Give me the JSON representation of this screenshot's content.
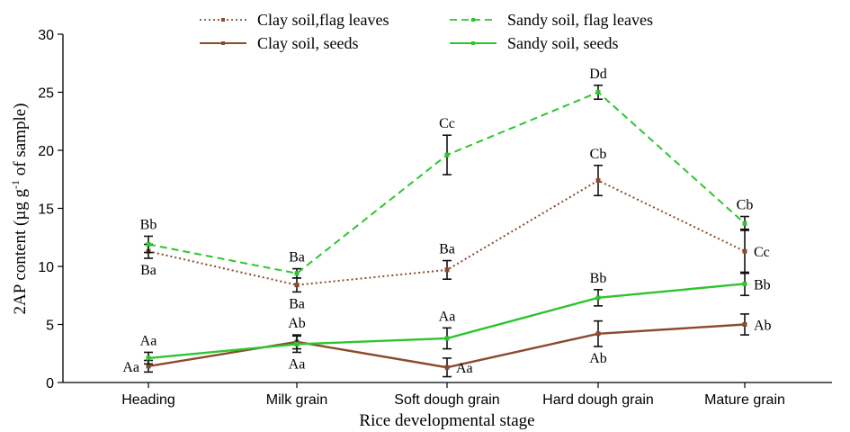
{
  "chart_data": {
    "type": "line",
    "xlabel": "Rice developmental stage",
    "ylabel": "2AP content (µg g",
    "ylabel_sup": "-1",
    "ylabel_tail": " of sample)",
    "ylim": [
      0,
      30
    ],
    "yticks": [
      "0",
      "5",
      "10",
      "15",
      "20",
      "25",
      "30"
    ],
    "categories": [
      "Heading",
      "Milk grain",
      "Soft dough grain",
      "Hard dough grain",
      "Mature grain"
    ],
    "grid": false,
    "legend_position": "top",
    "series": [
      {
        "name": "Clay soil,flag leaves",
        "style": "dotted",
        "color": "#8b4a2e",
        "values": [
          11.3,
          8.4,
          9.7,
          17.4,
          11.3
        ],
        "errors": [
          0.6,
          0.6,
          0.8,
          1.3,
          1.9
        ],
        "labels": [
          "Ba",
          "Ba",
          "Ba",
          "Cb",
          "Cc"
        ],
        "label_pos": [
          "below",
          "below",
          "above",
          "above",
          "right"
        ]
      },
      {
        "name": "Sandy soil, flag leaves",
        "style": "dashed",
        "color": "#2ec52e",
        "values": [
          11.9,
          9.4,
          19.6,
          25.0,
          13.7
        ],
        "errors": [
          0.7,
          0.4,
          1.7,
          0.6,
          0.6
        ],
        "labels": [
          "Bb",
          "Ba",
          "Cc",
          "Dd",
          "Cb"
        ],
        "label_pos": [
          "above",
          "above",
          "above",
          "above",
          "above"
        ]
      },
      {
        "name": "Clay soil, seeds",
        "style": "solid",
        "color": "#8b4a2e",
        "values": [
          1.4,
          3.5,
          1.3,
          4.2,
          5.0
        ],
        "errors": [
          0.5,
          0.6,
          0.8,
          1.1,
          0.9
        ],
        "labels": [
          "Aa",
          "Ab",
          "Aa",
          "Ab",
          "Ab"
        ],
        "label_pos": [
          "left",
          "above",
          "right",
          "below",
          "right"
        ]
      },
      {
        "name": "Sandy soil, seeds",
        "style": "solid",
        "color": "#2ec52e",
        "values": [
          2.1,
          3.3,
          3.8,
          7.3,
          8.5
        ],
        "errors": [
          0.5,
          0.7,
          0.9,
          0.7,
          1.0
        ],
        "labels": [
          "Aa",
          "Aa",
          "Aa",
          "Bb",
          "Bb"
        ],
        "label_pos": [
          "above",
          "below",
          "above",
          "above",
          "right"
        ]
      }
    ]
  }
}
